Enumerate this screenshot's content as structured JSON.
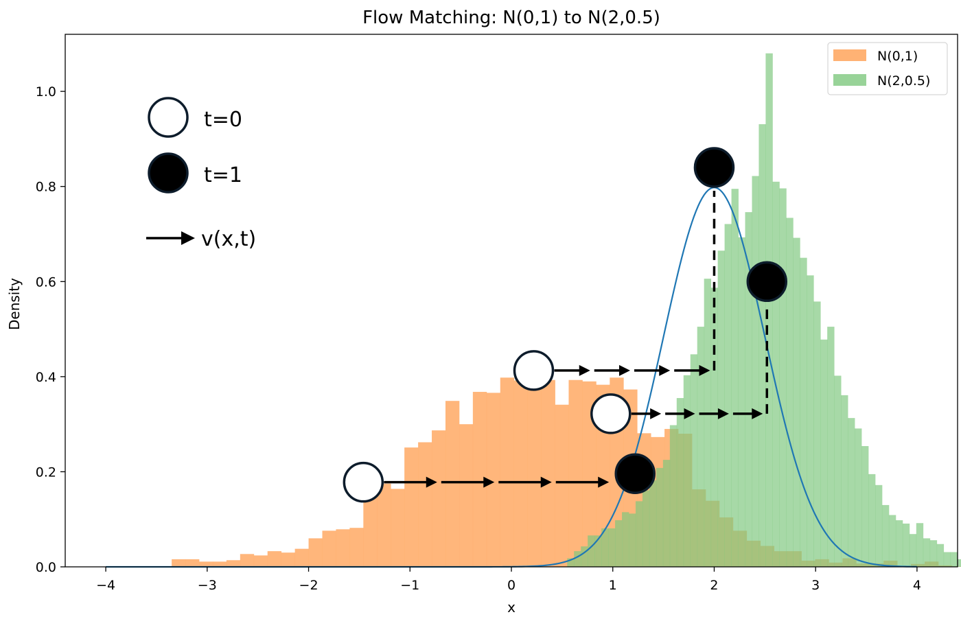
{
  "chart_data": {
    "type": "bar",
    "title": "Flow Matching: N(0,1) to N(2,0.5)",
    "xlabel": "x",
    "ylabel": "Density",
    "xlim": [
      -4,
      4
    ],
    "ylim": [
      0,
      1.12
    ],
    "x_ticks": [
      -4,
      -3,
      -2,
      -1,
      0,
      1,
      2,
      3,
      4
    ],
    "x_tick_labels": [
      "−4",
      "−3",
      "−2",
      "−1",
      "0",
      "1",
      "2",
      "3",
      "4"
    ],
    "y_ticks": [
      0.0,
      0.2,
      0.4,
      0.6,
      0.8,
      1.0
    ],
    "y_tick_labels": [
      "0.0",
      "0.2",
      "0.4",
      "0.6",
      "0.8",
      "1.0"
    ],
    "grid": false,
    "legend_position": "top-right",
    "series": [
      {
        "name": "N(0,1)",
        "color": "#ffab68",
        "bin_start": -3.35,
        "bin_width": 0.135,
        "values": [
          0.016,
          0.016,
          0.011,
          0.011,
          0.014,
          0.027,
          0.024,
          0.033,
          0.03,
          0.038,
          0.06,
          0.076,
          0.079,
          0.082,
          0.158,
          0.175,
          0.164,
          0.251,
          0.262,
          0.287,
          0.349,
          0.3,
          0.368,
          0.366,
          0.398,
          0.392,
          0.401,
          0.393,
          0.341,
          0.393,
          0.39,
          0.383,
          0.398,
          0.373,
          0.281,
          0.273,
          0.29,
          0.28,
          0.163,
          0.139,
          0.104,
          0.076,
          0.055,
          0.044,
          0.033,
          0.033,
          0.013,
          0.016,
          0.009,
          0.018,
          0.007,
          0.007,
          0.013,
          0.002,
          0.006,
          0.011,
          0.003,
          0.001,
          0.002
        ]
      },
      {
        "name": "N(2,0.5)",
        "color": "#7ec87e",
        "bin_start": 0.55,
        "bin_width": 0.0675,
        "values": [
          0.018,
          0.033,
          0.043,
          0.066,
          0.066,
          0.081,
          0.081,
          0.098,
          0.115,
          0.112,
          0.138,
          0.161,
          0.182,
          0.208,
          0.225,
          0.298,
          0.355,
          0.403,
          0.447,
          0.505,
          0.606,
          0.587,
          0.665,
          0.721,
          0.795,
          0.693,
          0.746,
          0.822,
          0.931,
          1.08,
          0.81,
          0.796,
          0.734,
          0.692,
          0.65,
          0.613,
          0.558,
          0.478,
          0.505,
          0.402,
          0.361,
          0.313,
          0.291,
          0.254,
          0.195,
          0.172,
          0.13,
          0.109,
          0.098,
          0.091,
          0.069,
          0.092,
          0.06,
          0.056,
          0.048,
          0.031,
          0.031,
          0.016,
          0.017,
          0.002
        ]
      }
    ],
    "curve": {
      "type": "line",
      "color": "#1f77b4",
      "mean": 2,
      "std": 0.5,
      "x_start": -4,
      "x_end": 4
    },
    "flow_paths": [
      {
        "start": [
          -1.46,
          0.178
        ],
        "end": [
          1.22,
          0.196
        ],
        "style": "horizontal-arrows"
      },
      {
        "start": [
          0.22,
          0.413
        ],
        "end": [
          2.0,
          0.84
        ],
        "style": "arrows-then-dashed-up"
      },
      {
        "start": [
          0.98,
          0.322
        ],
        "end": [
          2.52,
          0.6
        ],
        "style": "arrows-then-dashed-up"
      }
    ],
    "annotations": {
      "start_label": "t=0",
      "end_label": "t=1",
      "arrow_label": "v(x,t)"
    }
  }
}
